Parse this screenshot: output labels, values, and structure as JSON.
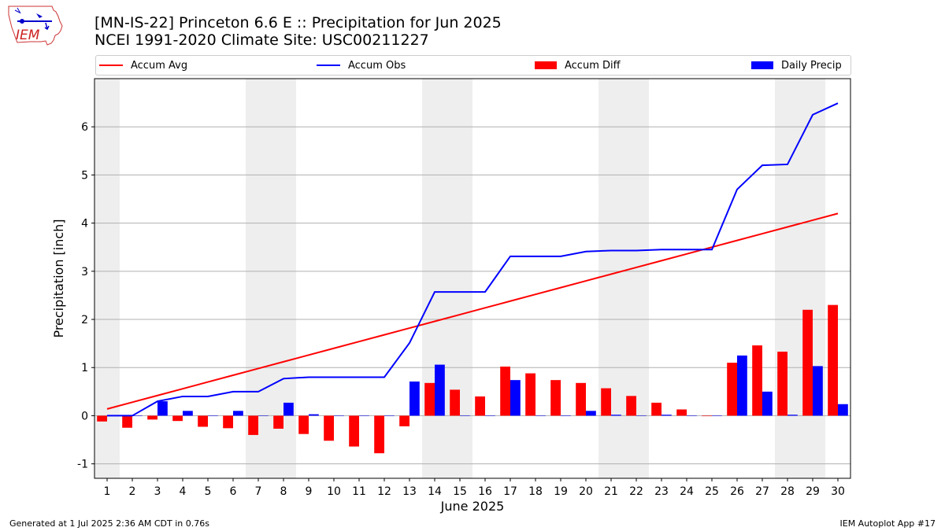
{
  "header": {
    "title": "[MN-IS-22] Princeton 6.6 E :: Precipitation for Jun 2025",
    "subtitle": "NCEI 1991-2020 Climate Site: USC00211227",
    "logo_text": "IEM"
  },
  "footer": {
    "left": "Generated at 1 Jul 2025 2:36 AM CDT in 0.76s",
    "right": "IEM Autoplot App #17"
  },
  "colors": {
    "avg": "#ff0000",
    "obs": "#0000ff",
    "diff": "#ff0000",
    "daily": "#0000ff",
    "weekend_band": "#eeeeee",
    "grid": "#b0b0b0"
  },
  "chart_data": {
    "type": "bar",
    "xlabel": "June 2025",
    "ylabel": "Precipitation [inch]",
    "ylim": [
      -1.3,
      7.0
    ],
    "yticks": [
      "-1",
      "0",
      "1",
      "2",
      "3",
      "4",
      "5",
      "6"
    ],
    "xlim": [
      0.5,
      30.5
    ],
    "categories": [
      "1",
      "2",
      "3",
      "4",
      "5",
      "6",
      "7",
      "8",
      "9",
      "10",
      "11",
      "12",
      "13",
      "14",
      "15",
      "16",
      "17",
      "18",
      "19",
      "20",
      "21",
      "22",
      "23",
      "24",
      "25",
      "26",
      "27",
      "28",
      "29",
      "30"
    ],
    "grid": "horizontal",
    "legend_position": "top",
    "shaded_days": [
      1,
      7,
      8,
      14,
      15,
      21,
      22,
      28,
      29
    ],
    "series": [
      {
        "name": "Accum Avg",
        "kind": "line",
        "values": [
          0.14,
          0.28,
          0.42,
          0.56,
          0.7,
          0.84,
          0.98,
          1.12,
          1.26,
          1.4,
          1.54,
          1.68,
          1.82,
          1.96,
          2.1,
          2.24,
          2.38,
          2.52,
          2.66,
          2.8,
          2.94,
          3.08,
          3.22,
          3.36,
          3.5,
          3.64,
          3.78,
          3.92,
          4.06,
          4.2
        ]
      },
      {
        "name": "Accum Obs",
        "kind": "line",
        "values": [
          0.0,
          0.0,
          0.3,
          0.4,
          0.4,
          0.5,
          0.5,
          0.77,
          0.8,
          0.8,
          0.8,
          0.8,
          1.51,
          2.57,
          2.57,
          2.57,
          3.31,
          3.31,
          3.31,
          3.41,
          3.43,
          3.43,
          3.45,
          3.45,
          3.45,
          4.7,
          5.2,
          5.22,
          6.25,
          6.49
        ]
      },
      {
        "name": "Accum Diff",
        "kind": "bar",
        "values": [
          -0.12,
          -0.25,
          -0.08,
          -0.11,
          -0.23,
          -0.26,
          -0.4,
          -0.27,
          -0.38,
          -0.52,
          -0.64,
          -0.78,
          -0.22,
          0.68,
          0.54,
          0.4,
          1.02,
          0.88,
          0.74,
          0.68,
          0.57,
          0.41,
          0.27,
          0.13,
          -0.01,
          1.1,
          1.46,
          1.33,
          2.2,
          2.3
        ]
      },
      {
        "name": "Daily Precip",
        "kind": "bar",
        "values": [
          0.0,
          0.0,
          0.3,
          0.1,
          0.0,
          0.1,
          0.0,
          0.27,
          0.03,
          0.0,
          0.0,
          0.0,
          0.71,
          1.06,
          0.0,
          0.0,
          0.74,
          0.0,
          0.0,
          0.1,
          0.02,
          0.0,
          0.02,
          0.0,
          0.0,
          1.25,
          0.5,
          0.02,
          1.03,
          0.24
        ]
      }
    ]
  }
}
